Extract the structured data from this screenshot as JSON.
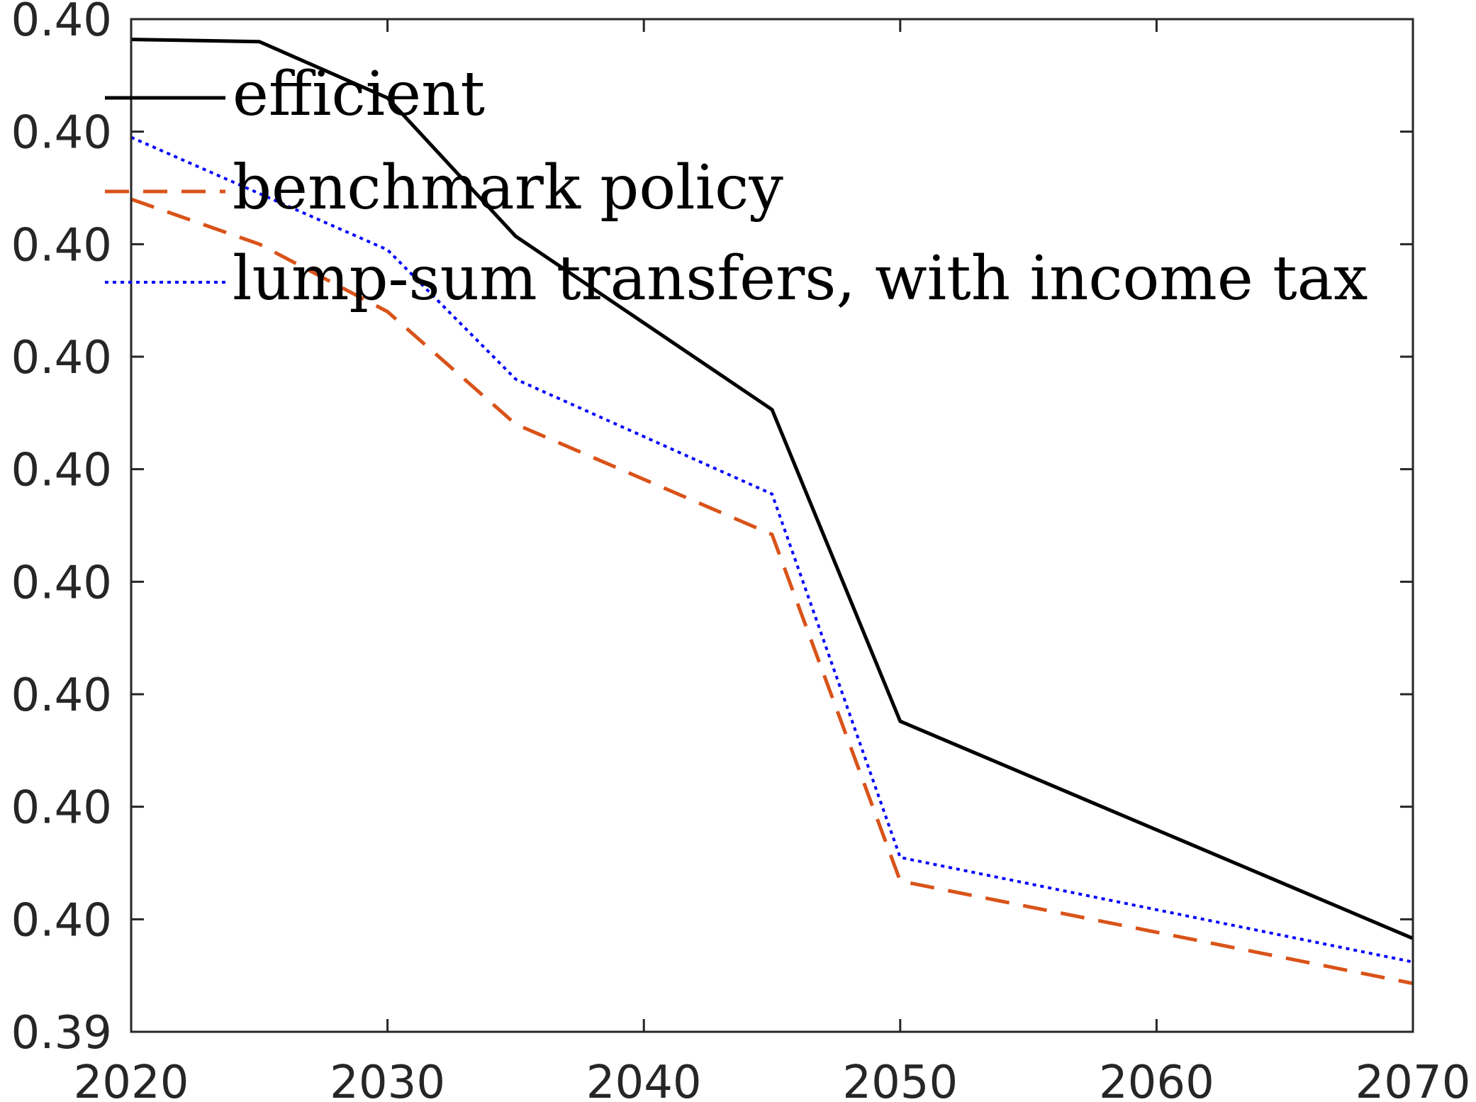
{
  "chart_data": {
    "type": "line",
    "title": "",
    "xlabel": "",
    "ylabel": "",
    "xlim": [
      2020,
      2070
    ],
    "ylim": [
      0.0,
      9.0
    ],
    "x_ticks": [
      2020,
      2030,
      2040,
      2050,
      2060,
      2070
    ],
    "x_tick_labels": [
      "2020",
      "2030",
      "2040",
      "2050",
      "2060",
      "2070"
    ],
    "y_ticks": [
      0,
      1,
      2,
      3,
      4,
      5,
      6,
      7,
      8,
      9
    ],
    "y_tick_labels": [
      "0.39",
      "0.40",
      "0.40",
      "0.40",
      "0.40",
      "0.40",
      "0.40",
      "0.40",
      "0.40",
      "0.40"
    ],
    "grid": false,
    "legend_position": "top-left",
    "series": [
      {
        "name": "efficient",
        "color": "#000000",
        "style": "solid",
        "x": [
          2020,
          2025,
          2030,
          2035,
          2045,
          2050,
          2070
        ],
        "y": [
          8.82,
          8.8,
          8.3,
          7.07,
          5.53,
          2.76,
          0.83
        ]
      },
      {
        "name": "benchmark policy",
        "color": "#D95319",
        "style": "dashed",
        "x": [
          2020,
          2025,
          2030,
          2035,
          2045,
          2050,
          2070
        ],
        "y": [
          7.4,
          7.0,
          6.4,
          5.4,
          4.42,
          1.34,
          0.43
        ]
      },
      {
        "name": "lump-sum transfers, with income tax",
        "color": "#0000FF",
        "style": "dotted",
        "x": [
          2020,
          2025,
          2030,
          2035,
          2045,
          2050,
          2070
        ],
        "y": [
          7.95,
          7.45,
          6.95,
          5.8,
          4.78,
          1.55,
          0.62
        ]
      }
    ]
  }
}
